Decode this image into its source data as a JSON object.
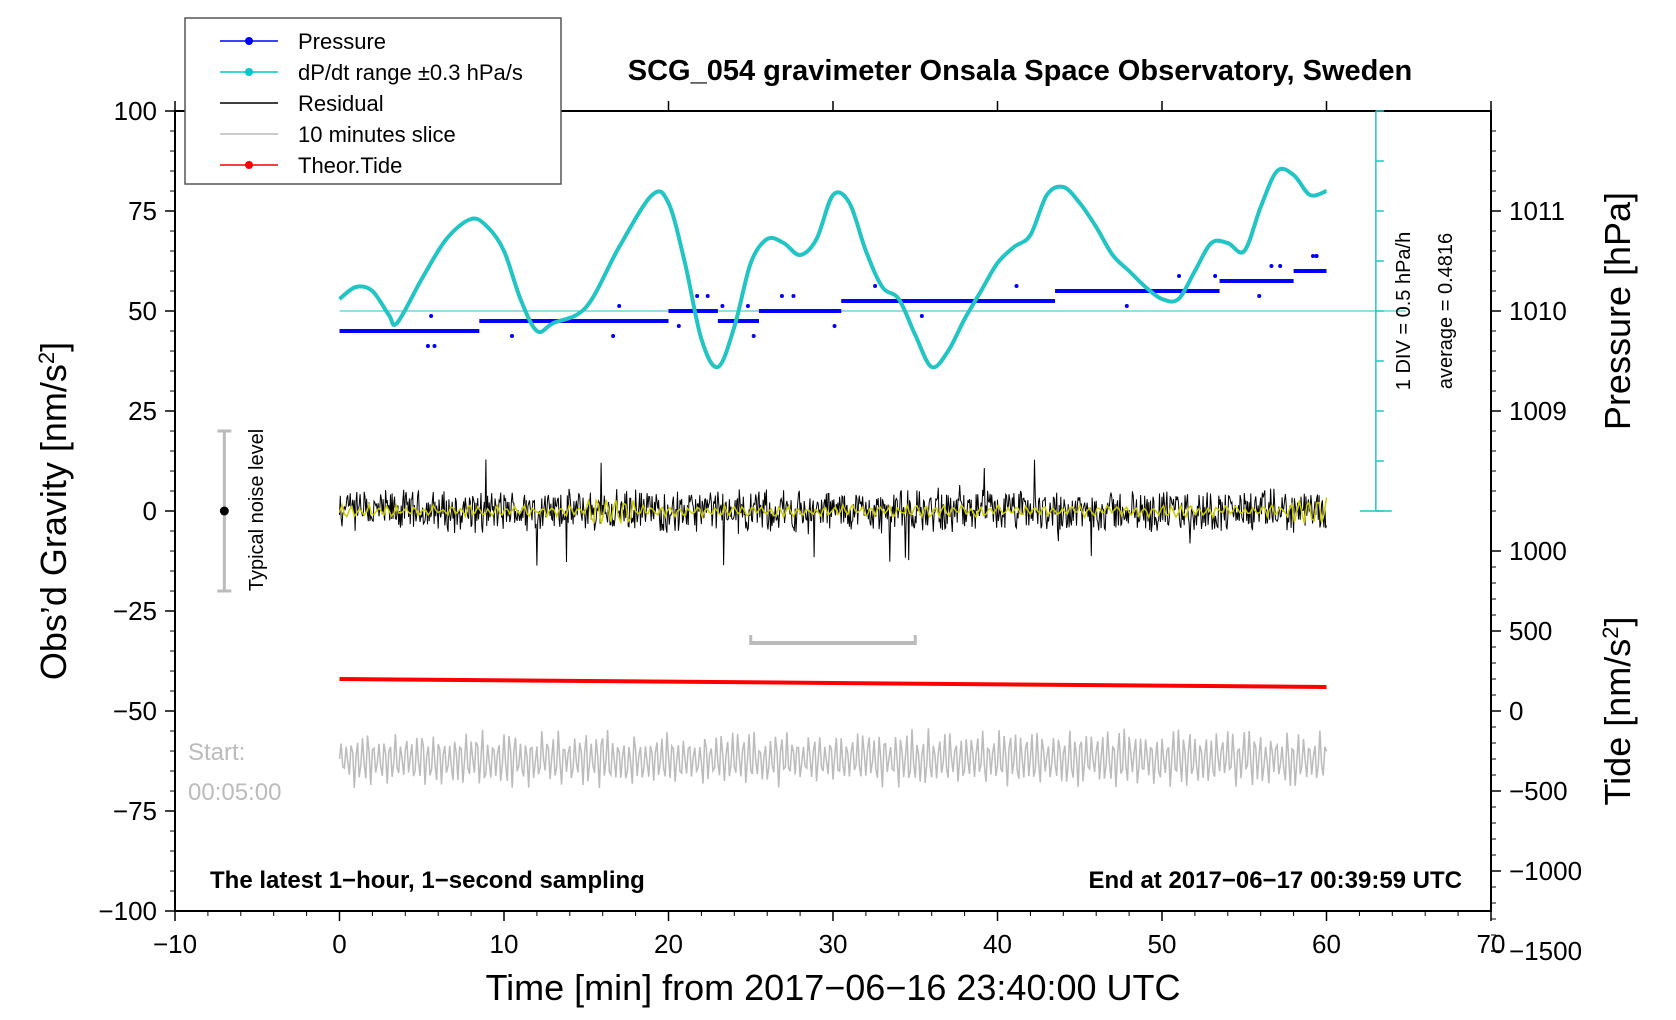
{
  "chart_data": {
    "type": "line",
    "title": "SCG_054 gravimeter Onsala Space Observatory, Sweden",
    "xlabel": "Time [min] from 2017−06−16 23:40:00 UTC",
    "ylabel_left": "Obs’d Gravity [nm/s²]",
    "ylabel_left_base": "Obs’d Gravity [nm/s",
    "ylabel_right_pressure": "Pressure [hPa]",
    "ylabel_right_tide": "Tide [nm/s²]",
    "ylabel_right_tide_base": "Tide [nm/s",
    "superscript": "2",
    "xlim": [
      -10,
      70
    ],
    "ylim": [
      -100,
      100
    ],
    "x_ticks": [
      {
        "value": -10,
        "label": "−10"
      },
      {
        "value": 0,
        "label": "0"
      },
      {
        "value": 10,
        "label": "10"
      },
      {
        "value": 20,
        "label": "20"
      },
      {
        "value": 30,
        "label": "30"
      },
      {
        "value": 40,
        "label": "40"
      },
      {
        "value": 50,
        "label": "50"
      },
      {
        "value": 60,
        "label": "60"
      },
      {
        "value": 70,
        "label": "70"
      }
    ],
    "y_ticks": [
      {
        "value": 100,
        "label": "100"
      },
      {
        "value": 75,
        "label": "75"
      },
      {
        "value": 50,
        "label": "50"
      },
      {
        "value": 25,
        "label": "25"
      },
      {
        "value": 0,
        "label": "0"
      },
      {
        "value": -25,
        "label": "−25"
      },
      {
        "value": -50,
        "label": "−50"
      },
      {
        "value": -75,
        "label": "−75"
      },
      {
        "value": -100,
        "label": "−100"
      }
    ],
    "pressure_axis": {
      "ticks": [
        {
          "hpa": 1011,
          "label": "1011"
        },
        {
          "hpa": 1010,
          "label": "1010"
        },
        {
          "hpa": 1009,
          "label": "1009"
        }
      ],
      "gravity_per_hpa": 25,
      "zero_hpa": 1008,
      "avg_hpa": 1010
    },
    "tide_axis": {
      "ticks": [
        {
          "value": 1000,
          "label": "1000"
        },
        {
          "value": 500,
          "label": "500"
        },
        {
          "value": 0,
          "label": "0"
        },
        {
          "value": -500,
          "label": "−500"
        },
        {
          "value": -1000,
          "label": "−1000"
        },
        {
          "value": -1500,
          "label": "−1500"
        }
      ],
      "gravity_per_unit": 0.04,
      "offset": -50
    },
    "legend": [
      {
        "label": "Pressure",
        "color": "#0000ff",
        "marker": true
      },
      {
        "label": "dP/dt range ±0.3 hPa/s",
        "color": "#00c8c8",
        "marker": true
      },
      {
        "label": "Residual",
        "color": "#000000",
        "marker": false
      },
      {
        "label": "10 minutes slice",
        "color": "#bbbbbb",
        "marker": false
      },
      {
        "label": "Theor.Tide",
        "color": "#ff0000",
        "marker": true
      }
    ],
    "series": [
      {
        "name": "dP/dt",
        "color": "#22c4c4",
        "x": [
          0,
          1,
          2,
          3,
          3.5,
          5,
          6.5,
          8,
          9,
          10,
          11,
          12,
          13,
          15,
          17,
          19,
          20,
          21,
          22,
          23,
          24,
          25,
          26,
          27,
          28,
          29,
          30,
          31,
          32,
          33,
          34,
          35,
          36,
          37,
          38,
          39,
          40,
          41,
          42,
          43,
          44,
          45,
          46,
          47,
          48,
          49,
          50,
          51,
          52,
          53,
          54,
          55,
          56,
          57,
          58,
          59,
          60
        ],
        "values": [
          53,
          56,
          55,
          49,
          47,
          58,
          68,
          73,
          71,
          65,
          53,
          45,
          47,
          51,
          66,
          79,
          77,
          62,
          43,
          36,
          46,
          62,
          68,
          67,
          64,
          68,
          79,
          77,
          65,
          56,
          53,
          44,
          36,
          40,
          48,
          55,
          62,
          66,
          69,
          79,
          81,
          77,
          71,
          64,
          60,
          56,
          53,
          53,
          60,
          67,
          67,
          65,
          76,
          85,
          84,
          79,
          80
        ]
      },
      {
        "name": "Pressure",
        "color": "#0000ff",
        "segments": [
          {
            "x0": 0,
            "x1": 8.5,
            "hpa": 1009.8
          },
          {
            "x0": 8.5,
            "x1": 20,
            "hpa": 1009.9
          },
          {
            "x0": 20,
            "x1": 23,
            "hpa": 1010.0
          },
          {
            "x0": 23,
            "x1": 25.5,
            "hpa": 1009.9
          },
          {
            "x0": 25.5,
            "x1": 30.5,
            "hpa": 1010.0
          },
          {
            "x0": 30.5,
            "x1": 43.5,
            "hpa": 1010.1
          },
          {
            "x0": 43.5,
            "x1": 53.5,
            "hpa": 1010.2
          },
          {
            "x0": 53.5,
            "x1": 58,
            "hpa": 1010.3
          },
          {
            "x0": 58,
            "x1": 60,
            "hpa": 1010.4
          }
        ]
      },
      {
        "name": "Residual",
        "color": "#000000",
        "x_range": [
          0,
          60
        ],
        "amplitude": 5,
        "max_spike": 14,
        "min_spike": -13
      },
      {
        "name": "Residual smoothed",
        "color": "#cccc00",
        "x_range": [
          0,
          60
        ],
        "amplitude": 2
      },
      {
        "name": "Theor.Tide",
        "color": "#ff0000",
        "x": [
          0,
          60
        ],
        "tide_values": [
          200,
          150
        ]
      },
      {
        "name": "10 minutes slice",
        "color": "#bbbbbb",
        "x_range": [
          0,
          60
        ],
        "center": -62,
        "amplitude": 6,
        "bracket": {
          "x0": 25,
          "x1": 35,
          "y": -33
        }
      }
    ],
    "annotations": {
      "noise_label": "Typical noise level",
      "noise_bar": {
        "x": -7,
        "y_top": 20,
        "y_bottom": -20
      },
      "div_label": "1 DIV = 0.5 hPa/h",
      "average_label": "average = 0.4816",
      "start_label": "Start:",
      "start_time": "00:05:00",
      "footer_left": "The latest 1−hour, 1−second sampling",
      "footer_right": "End at 2017−06−17 00:39:59 UTC"
    }
  }
}
